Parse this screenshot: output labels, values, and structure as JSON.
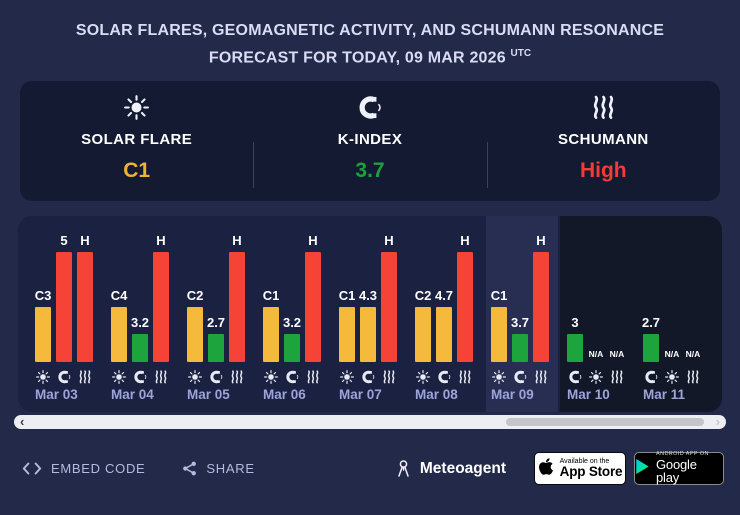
{
  "title": {
    "line1": "SOLAR FLARES, GEOMAGNETIC ACTIVITY, AND SCHUMANN RESONANCE",
    "line2": "FORECAST FOR TODAY, 09 MAR 2026",
    "utc": "UTC"
  },
  "summary": {
    "cards": [
      {
        "icon": "sun-icon",
        "label": "SOLAR FLARE",
        "value": "C1",
        "color": "#f0b232"
      },
      {
        "icon": "magnet-icon",
        "label": "K-INDEX",
        "value": "3.7",
        "color": "#1ca23a"
      },
      {
        "icon": "waves-icon",
        "label": "SCHUMANN",
        "value": "High",
        "color": "#f43b35"
      }
    ]
  },
  "chart_data": {
    "type": "bar",
    "title": "Solar flares, geomagnetic activity and Schumann resonance forecast",
    "categories": [
      "Mar 03",
      "Mar 04",
      "Mar 05",
      "Mar 06",
      "Mar 07",
      "Mar 08",
      "Mar 09",
      "Mar 10",
      "Mar 11"
    ],
    "series": [
      {
        "name": "Solar flare",
        "values": [
          "C3",
          "C4",
          "C2",
          "C1",
          "C1",
          "C2",
          "C1",
          "N/A",
          "N/A"
        ]
      },
      {
        "name": "K-index",
        "values": [
          5,
          3.2,
          2.7,
          3.2,
          4.3,
          4.7,
          3.7,
          3,
          2.7
        ]
      },
      {
        "name": "Schumann",
        "values": [
          "H",
          "H",
          "H",
          "H",
          "H",
          "H",
          "H",
          "N/A",
          "N/A"
        ]
      }
    ],
    "today": "Mar 09",
    "legend_position": "none",
    "grid": false,
    "days": [
      {
        "date": "Mar 03",
        "today": false,
        "columns": [
          {
            "metric": "solar-flare",
            "icon": "sun-icon",
            "label": "C3",
            "level": "medium",
            "color": "#f5b93c"
          },
          {
            "metric": "k-index",
            "icon": "magnet-icon",
            "label": "5",
            "level": "high",
            "color": "#f54338"
          },
          {
            "metric": "schumann",
            "icon": "waves-icon",
            "label": "H",
            "level": "high",
            "color": "#f54338"
          }
        ]
      },
      {
        "date": "Mar 04",
        "today": false,
        "columns": [
          {
            "metric": "solar-flare",
            "icon": "sun-icon",
            "label": "C4",
            "level": "medium",
            "color": "#f5b93c"
          },
          {
            "metric": "k-index",
            "icon": "magnet-icon",
            "label": "3.2",
            "level": "low",
            "color": "#1ea43c"
          },
          {
            "metric": "schumann",
            "icon": "waves-icon",
            "label": "H",
            "level": "high",
            "color": "#f54338"
          }
        ]
      },
      {
        "date": "Mar 05",
        "today": false,
        "columns": [
          {
            "metric": "solar-flare",
            "icon": "sun-icon",
            "label": "C2",
            "level": "medium",
            "color": "#f5b93c"
          },
          {
            "metric": "k-index",
            "icon": "magnet-icon",
            "label": "2.7",
            "level": "low",
            "color": "#1ea43c"
          },
          {
            "metric": "schumann",
            "icon": "waves-icon",
            "label": "H",
            "level": "high",
            "color": "#f54338"
          }
        ]
      },
      {
        "date": "Mar 06",
        "today": false,
        "columns": [
          {
            "metric": "solar-flare",
            "icon": "sun-icon",
            "label": "C1",
            "level": "medium",
            "color": "#f5b93c"
          },
          {
            "metric": "k-index",
            "icon": "magnet-icon",
            "label": "3.2",
            "level": "low",
            "color": "#1ea43c"
          },
          {
            "metric": "schumann",
            "icon": "waves-icon",
            "label": "H",
            "level": "high",
            "color": "#f54338"
          }
        ]
      },
      {
        "date": "Mar 07",
        "today": false,
        "columns": [
          {
            "metric": "solar-flare",
            "icon": "sun-icon",
            "label": "C1",
            "level": "medium",
            "color": "#f5b93c"
          },
          {
            "metric": "k-index",
            "icon": "magnet-icon",
            "label": "4.3",
            "level": "medium",
            "color": "#f5b93c"
          },
          {
            "metric": "schumann",
            "icon": "waves-icon",
            "label": "H",
            "level": "high",
            "color": "#f54338"
          }
        ]
      },
      {
        "date": "Mar 08",
        "today": false,
        "columns": [
          {
            "metric": "solar-flare",
            "icon": "sun-icon",
            "label": "C2",
            "level": "medium",
            "color": "#f5b93c"
          },
          {
            "metric": "k-index",
            "icon": "magnet-icon",
            "label": "4.7",
            "level": "medium",
            "color": "#f5b93c"
          },
          {
            "metric": "schumann",
            "icon": "waves-icon",
            "label": "H",
            "level": "high",
            "color": "#f54338"
          }
        ]
      },
      {
        "date": "Mar 09",
        "today": true,
        "columns": [
          {
            "metric": "solar-flare",
            "icon": "sun-icon",
            "label": "C1",
            "level": "medium",
            "color": "#f5b93c"
          },
          {
            "metric": "k-index",
            "icon": "magnet-icon",
            "label": "3.7",
            "level": "low",
            "color": "#1ea43c"
          },
          {
            "metric": "schumann",
            "icon": "waves-icon",
            "label": "H",
            "level": "high",
            "color": "#f54338"
          }
        ]
      },
      {
        "date": "Mar 10",
        "today": false,
        "columns": [
          {
            "metric": "k-index",
            "icon": "magnet-icon",
            "label": "3",
            "level": "low",
            "color": "#1ea43c"
          },
          {
            "metric": "solar-flare",
            "icon": "sun-icon",
            "label": "N/A",
            "level": "na"
          },
          {
            "metric": "schumann",
            "icon": "waves-icon",
            "label": "N/A",
            "level": "na"
          }
        ]
      },
      {
        "date": "Mar 11",
        "today": false,
        "columns": [
          {
            "metric": "k-index",
            "icon": "magnet-icon",
            "label": "2.7",
            "level": "low",
            "color": "#1ea43c"
          },
          {
            "metric": "solar-flare",
            "icon": "sun-icon",
            "label": "N/A",
            "level": "na"
          },
          {
            "metric": "schumann",
            "icon": "waves-icon",
            "label": "N/A",
            "level": "na"
          }
        ]
      }
    ]
  },
  "scrollbar": {
    "left_arrow": "‹",
    "right_arrow": "›"
  },
  "footer": {
    "embed_label": "EMBED CODE",
    "share_label": "SHARE",
    "brand_label": "Meteoagent",
    "appstore": {
      "line1": "Available on the",
      "line2": "App Store"
    },
    "googleplay": {
      "line1": "ANDROID APP ON",
      "line2": "Google play"
    }
  },
  "colors": {
    "background": "#232948",
    "panel": "#151a33",
    "chart_panel": "#1b2140",
    "future_region": "#131829",
    "today_highlight": "#272e52",
    "flare_bar": "#f5b93c",
    "k_low_bar": "#1ea43c",
    "alert_bar": "#f54338"
  }
}
